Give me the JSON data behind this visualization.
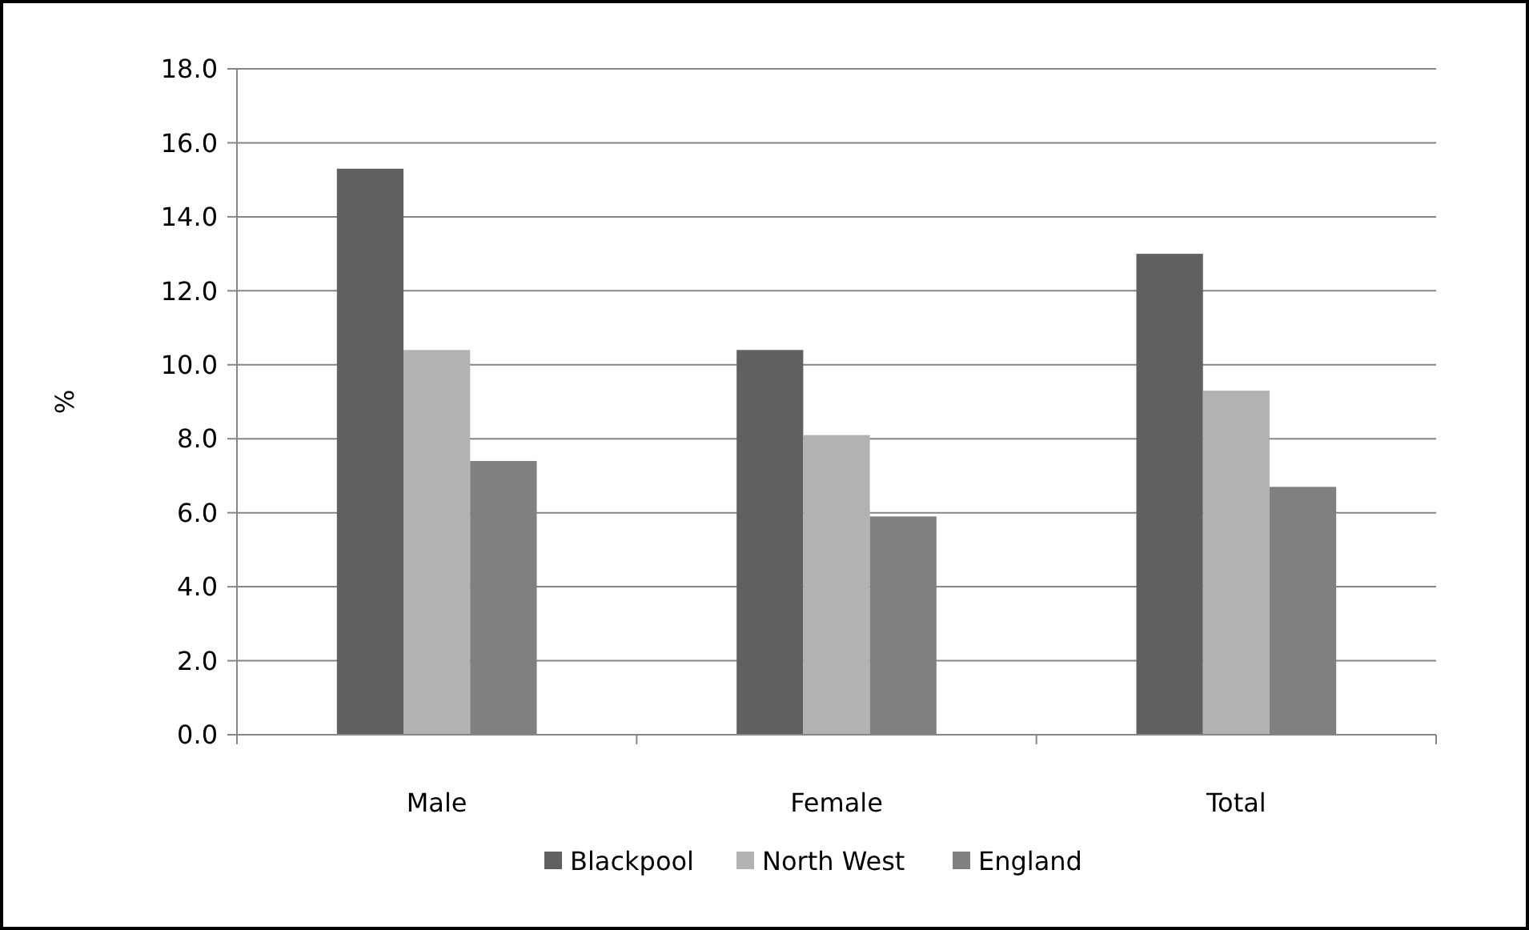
{
  "chart_data": {
    "type": "bar",
    "ylabel": "%",
    "categories": [
      "Male",
      "Female",
      "Total"
    ],
    "series": [
      {
        "name": "Blackpool",
        "color": "#606060",
        "values": [
          15.3,
          10.4,
          13.0
        ]
      },
      {
        "name": "North West",
        "color": "#b2b2b2",
        "values": [
          10.4,
          8.1,
          9.3
        ]
      },
      {
        "name": "England",
        "color": "#808080",
        "values": [
          7.4,
          5.9,
          6.7
        ]
      }
    ],
    "ylim": [
      0,
      18
    ],
    "yticks": [
      {
        "value": 0,
        "label": "0.0"
      },
      {
        "value": 2,
        "label": "2.0"
      },
      {
        "value": 4,
        "label": "4.0"
      },
      {
        "value": 6,
        "label": "6.0"
      },
      {
        "value": 8,
        "label": "8.0"
      },
      {
        "value": 10,
        "label": "10.0"
      },
      {
        "value": 12,
        "label": "12.0"
      },
      {
        "value": 14,
        "label": "14.0"
      },
      {
        "value": 16,
        "label": "16.0"
      },
      {
        "value": 18,
        "label": "18.0"
      }
    ],
    "grid": "y",
    "legend": "bottom"
  }
}
